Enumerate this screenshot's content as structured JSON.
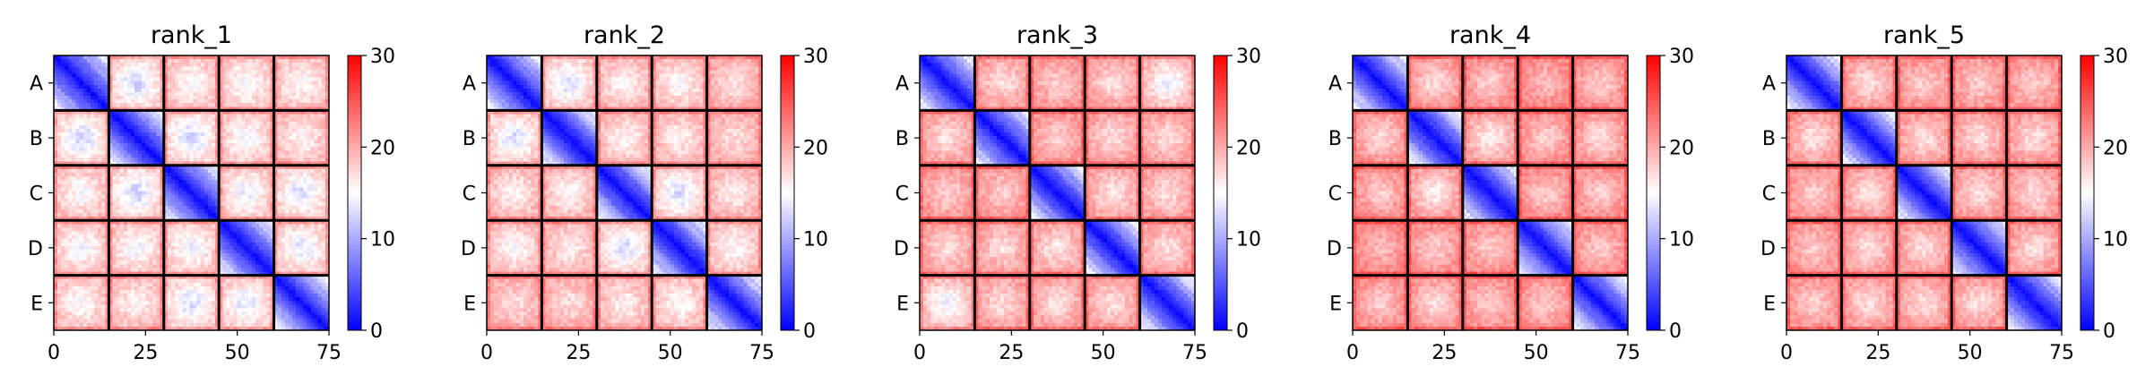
{
  "colors": {
    "low": "#0000ff",
    "mid": "#ffffff",
    "high": "#ff0000",
    "grid_line": "#000000"
  },
  "chart_data": [
    {
      "type": "heatmap",
      "title": "rank_1",
      "n": 75,
      "block_size": 15,
      "x_ticks": [
        0,
        25,
        50,
        75
      ],
      "y_tick_labels": [
        "A",
        "B",
        "C",
        "D",
        "E"
      ],
      "colorbar": {
        "min": 0,
        "max": 30,
        "ticks": [
          0,
          10,
          20,
          30
        ],
        "colors": [
          "blue",
          "white",
          "red"
        ]
      },
      "pattern": {
        "base": 17,
        "diag_rate": 0.9,
        "chain_pairs": {
          "A-B": 12.5,
          "A-C": 15,
          "A-D": 14.5,
          "A-E": 15,
          "B-C": 12.5,
          "B-D": 14.5,
          "B-E": 15.5,
          "C-D": 14,
          "C-E": 13,
          "D-E": 13.5
        }
      }
    },
    {
      "type": "heatmap",
      "title": "rank_2",
      "n": 75,
      "block_size": 15,
      "x_ticks": [
        0,
        25,
        50,
        75
      ],
      "y_tick_labels": [
        "A",
        "B",
        "C",
        "D",
        "E"
      ],
      "colorbar": {
        "min": 0,
        "max": 30,
        "ticks": [
          0,
          10,
          20,
          30
        ],
        "colors": [
          "blue",
          "white",
          "red"
        ]
      },
      "pattern": {
        "base": 17.5,
        "diag_rate": 0.9,
        "chain_pairs": {
          "A-B": 13,
          "A-C": 15.5,
          "A-D": 15,
          "A-E": 17,
          "B-C": 15.5,
          "B-D": 16,
          "B-E": 17,
          "C-D": 13,
          "C-E": 16,
          "D-E": 15
        }
      }
    },
    {
      "type": "heatmap",
      "title": "rank_3",
      "n": 75,
      "block_size": 15,
      "x_ticks": [
        0,
        25,
        50,
        75
      ],
      "y_tick_labels": [
        "A",
        "B",
        "C",
        "D",
        "E"
      ],
      "colorbar": {
        "min": 0,
        "max": 30,
        "ticks": [
          0,
          10,
          20,
          30
        ],
        "colors": [
          "blue",
          "white",
          "red"
        ]
      },
      "pattern": {
        "base": 19,
        "diag_rate": 0.9,
        "chain_pairs": {
          "A-B": 17,
          "A-C": 18,
          "A-D": 17,
          "A-E": 14,
          "B-C": 18,
          "B-D": 17,
          "B-E": 17,
          "C-D": 16.5,
          "C-E": 17,
          "D-E": 17
        }
      }
    },
    {
      "type": "heatmap",
      "title": "rank_4",
      "n": 75,
      "block_size": 15,
      "x_ticks": [
        0,
        25,
        50,
        75
      ],
      "y_tick_labels": [
        "A",
        "B",
        "C",
        "D",
        "E"
      ],
      "colorbar": {
        "min": 0,
        "max": 30,
        "ticks": [
          0,
          10,
          20,
          30
        ],
        "colors": [
          "blue",
          "white",
          "red"
        ]
      },
      "pattern": {
        "base": 20,
        "diag_rate": 0.9,
        "chain_pairs": {
          "A-B": 17,
          "A-C": 18,
          "A-D": 19,
          "A-E": 18,
          "B-C": 16,
          "B-D": 18,
          "B-E": 17,
          "C-D": 18,
          "C-E": 18,
          "D-E": 18
        }
      }
    },
    {
      "type": "heatmap",
      "title": "rank_5",
      "n": 75,
      "block_size": 15,
      "x_ticks": [
        0,
        25,
        50,
        75
      ],
      "y_tick_labels": [
        "A",
        "B",
        "C",
        "D",
        "E"
      ],
      "colorbar": {
        "min": 0,
        "max": 30,
        "ticks": [
          0,
          10,
          20,
          30
        ],
        "colors": [
          "blue",
          "white",
          "red"
        ]
      },
      "pattern": {
        "base": 19.5,
        "diag_rate": 0.9,
        "chain_pairs": {
          "A-B": 17,
          "A-C": 18,
          "A-D": 18,
          "A-E": 18,
          "B-C": 17,
          "B-D": 17,
          "B-E": 17,
          "C-D": 17,
          "C-E": 17,
          "D-E": 17
        }
      }
    }
  ]
}
